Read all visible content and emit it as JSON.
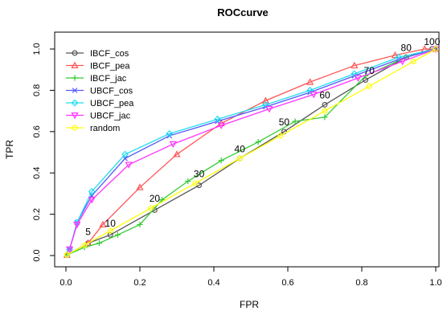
{
  "chart_data": {
    "type": "line",
    "title": "ROCcurve",
    "xlabel": "FPR",
    "ylabel": "TPR",
    "xlim": [
      0,
      1
    ],
    "ylim": [
      0,
      1
    ],
    "xticks": [
      "0.0",
      "0.2",
      "0.4",
      "0.6",
      "0.8",
      "1.0"
    ],
    "yticks": [
      "0.0",
      "0.2",
      "0.4",
      "0.6",
      "0.8",
      "1.0"
    ],
    "grid": false,
    "legend_position": "top-left",
    "series": [
      {
        "name": "IBCF_cos",
        "color": "#555555",
        "marker": "circle",
        "x": [
          0.003,
          0.06,
          0.12,
          0.24,
          0.36,
          0.47,
          0.59,
          0.7,
          0.81,
          0.92,
          0.99
        ],
        "y": [
          0.003,
          0.06,
          0.1,
          0.22,
          0.34,
          0.47,
          0.6,
          0.73,
          0.85,
          0.96,
          1.0
        ]
      },
      {
        "name": "IBCF_pea",
        "color": "#ff5555",
        "marker": "triangle-up",
        "x": [
          0.003,
          0.06,
          0.1,
          0.2,
          0.3,
          0.42,
          0.54,
          0.66,
          0.78,
          0.89,
          0.97,
          1.0
        ],
        "y": [
          0.003,
          0.06,
          0.15,
          0.33,
          0.49,
          0.64,
          0.75,
          0.84,
          0.92,
          0.97,
          1.0,
          1.0
        ]
      },
      {
        "name": "IBCF_jac",
        "color": "#33cc33",
        "marker": "plus",
        "x": [
          0.003,
          0.05,
          0.09,
          0.14,
          0.2,
          0.26,
          0.33,
          0.42,
          0.52,
          0.62,
          0.7,
          0.81,
          0.92,
          1.0
        ],
        "y": [
          0.003,
          0.04,
          0.06,
          0.1,
          0.15,
          0.27,
          0.36,
          0.46,
          0.55,
          0.65,
          0.67,
          0.87,
          0.96,
          1.0
        ]
      },
      {
        "name": "UBCF_cos",
        "color": "#5555ff",
        "marker": "x",
        "x": [
          0.01,
          0.03,
          0.07,
          0.16,
          0.28,
          0.41,
          0.54,
          0.66,
          0.78,
          0.9,
          1.0
        ],
        "y": [
          0.03,
          0.16,
          0.29,
          0.47,
          0.58,
          0.65,
          0.72,
          0.79,
          0.87,
          0.95,
          1.0
        ]
      },
      {
        "name": "UBCF_pea",
        "color": "#22ddee",
        "marker": "diamond",
        "x": [
          0.01,
          0.03,
          0.07,
          0.16,
          0.28,
          0.41,
          0.54,
          0.66,
          0.78,
          0.9,
          1.0
        ],
        "y": [
          0.03,
          0.16,
          0.31,
          0.49,
          0.59,
          0.66,
          0.73,
          0.8,
          0.88,
          0.96,
          1.0
        ]
      },
      {
        "name": "UBCF_jac",
        "color": "#ff33ff",
        "marker": "triangle-down",
        "x": [
          0.01,
          0.03,
          0.07,
          0.17,
          0.29,
          0.42,
          0.55,
          0.67,
          0.79,
          0.91,
          1.0
        ],
        "y": [
          0.03,
          0.15,
          0.27,
          0.44,
          0.54,
          0.63,
          0.71,
          0.78,
          0.86,
          0.94,
          1.0
        ]
      },
      {
        "name": "random",
        "color": "#ffff00",
        "marker": "circle",
        "x": [
          0.003,
          0.05,
          0.12,
          0.23,
          0.35,
          0.47,
          0.58,
          0.7,
          0.82,
          0.94,
          1.0
        ],
        "y": [
          0.003,
          0.05,
          0.12,
          0.23,
          0.35,
          0.47,
          0.58,
          0.7,
          0.82,
          0.94,
          1.0
        ]
      }
    ],
    "annotations": [
      {
        "text": "5",
        "x": 0.06,
        "y": 0.1
      },
      {
        "text": "10",
        "x": 0.12,
        "y": 0.14
      },
      {
        "text": "20",
        "x": 0.24,
        "y": 0.26
      },
      {
        "text": "30",
        "x": 0.36,
        "y": 0.38
      },
      {
        "text": "40",
        "x": 0.47,
        "y": 0.5
      },
      {
        "text": "50",
        "x": 0.59,
        "y": 0.63
      },
      {
        "text": "60",
        "x": 0.7,
        "y": 0.76
      },
      {
        "text": "70",
        "x": 0.82,
        "y": 0.88
      },
      {
        "text": "80",
        "x": 0.92,
        "y": 0.99
      },
      {
        "text": "100",
        "x": 0.99,
        "y": 1.02
      }
    ]
  }
}
